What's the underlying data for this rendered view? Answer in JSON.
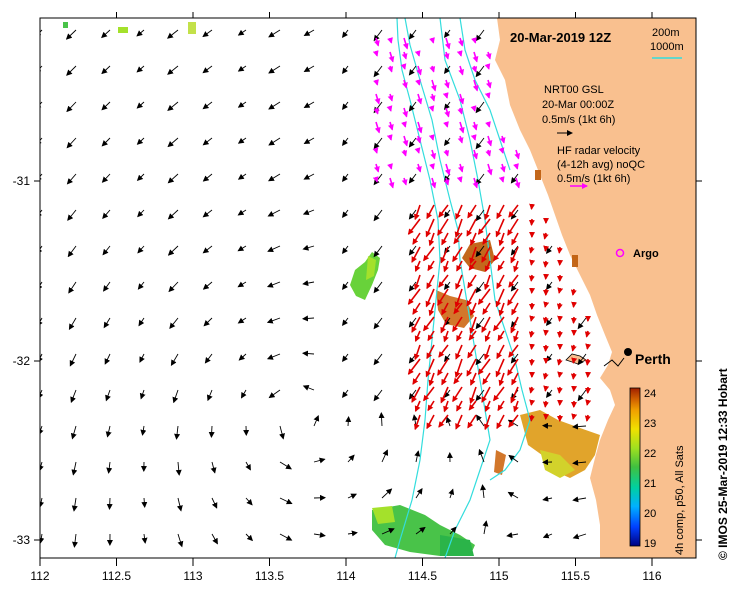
{
  "title": "20-Mar-2019 12Z",
  "bathymetry": {
    "contour_1": "200m",
    "contour_2": "1000m",
    "line_color": "#33dddd"
  },
  "model_legend": {
    "source": "NRT00 GSL",
    "time": "20-Mar 00:00Z",
    "scale": "0.5m/s (1kt 6h)",
    "arrow_color": "#000000"
  },
  "radar_legend": {
    "title": "HF radar velocity",
    "subtitle": "(4-12h avg) noQC",
    "scale": "0.5m/s (1kt 6h)",
    "arrow_color": "#ff00ff",
    "southern_arrow_color": "#e00000"
  },
  "argo": {
    "label": "Argo",
    "color": "#ff00ff"
  },
  "city": {
    "label": "Perth"
  },
  "colorbar": {
    "label": "4h comp, p50, All Sats",
    "ticks": [
      "24",
      "23",
      "22",
      "21",
      "20",
      "19"
    ],
    "min": 19,
    "max": 24,
    "colors": [
      "#000080",
      "#0040ff",
      "#00b0ff",
      "#00d0a0",
      "#40c040",
      "#a0e020",
      "#f0e000",
      "#f0a000",
      "#d06000",
      "#a02000"
    ]
  },
  "credit": "© IMOS 25-Mar-2019 12:33 Hobart",
  "x_axis": {
    "ticks": [
      "112",
      "112.5",
      "113",
      "113.5",
      "114",
      "114.5",
      "115",
      "115.5",
      "116"
    ]
  },
  "y_axis": {
    "ticks": [
      "-31",
      "-32",
      "-33"
    ]
  },
  "colors": {
    "land": "#f9c08f",
    "ocean": "#ffffff"
  }
}
